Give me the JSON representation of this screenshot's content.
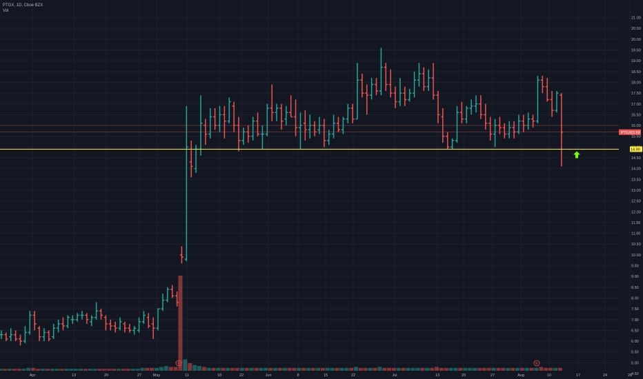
{
  "header": {
    "symbol_line": "PTGX, 1D, Cboe BZX",
    "volume_label": "Vol"
  },
  "price_scale": {
    "ticks": [
      "21.00",
      "20.50",
      "20.00",
      "19.50",
      "19.00",
      "18.50",
      "18.00",
      "17.50",
      "17.00",
      "16.50",
      "16.00",
      "15.50",
      "15.00",
      "14.50",
      "14.00",
      "13.50",
      "13.00",
      "12.50",
      "12.00",
      "11.50",
      "11.00",
      "10.50",
      "10.00",
      "9.50",
      "9.00",
      "8.50",
      "8.00",
      "7.50",
      "7.00",
      "6.50",
      "6.00",
      "5.50",
      "5.00",
      "4.50"
    ]
  },
  "time_axis": {
    "labels": [
      "Apr",
      "13",
      "20",
      "27",
      "May",
      "11",
      "18",
      "22",
      "Jun",
      "8",
      "15",
      "22",
      "Jul",
      "13",
      "20",
      "27",
      "Aug",
      "10",
      "17",
      "24",
      "28"
    ]
  },
  "lines": {
    "support": {
      "value": "14.90",
      "color": "#ffeb3b"
    },
    "last_price": {
      "symbol": "PTGX",
      "value": "15.69",
      "color": "#ef5350"
    }
  },
  "colors": {
    "up": "#26a69a",
    "down": "#ef5350",
    "background": "#131722",
    "grid": "#1e222d",
    "arrow": "#76ff03"
  },
  "event_markers": [
    "E",
    "E"
  ],
  "chart_data": {
    "type": "ohlc",
    "title": "PTGX, 1D, Cboe BZX",
    "ylim": [
      4.5,
      21.0
    ],
    "support_level": 14.9,
    "last_price": 15.69,
    "bars": [
      [
        6.3,
        6.5,
        6.1,
        6.3
      ],
      [
        6.3,
        6.4,
        6.0,
        6.1
      ],
      [
        6.2,
        6.6,
        6.0,
        6.3
      ],
      [
        6.3,
        6.5,
        6.0,
        6.1
      ],
      [
        6.1,
        6.3,
        5.8,
        6.0
      ],
      [
        6.0,
        6.7,
        5.9,
        6.4
      ],
      [
        6.4,
        7.4,
        6.3,
        7.2
      ],
      [
        7.2,
        7.4,
        6.5,
        6.8
      ],
      [
        6.6,
        6.7,
        6.0,
        6.2
      ],
      [
        6.2,
        6.6,
        6.0,
        6.4
      ],
      [
        6.4,
        6.5,
        6.0,
        6.1
      ],
      [
        6.2,
        6.8,
        6.1,
        6.6
      ],
      [
        6.6,
        7.0,
        6.4,
        6.8
      ],
      [
        6.8,
        7.1,
        6.5,
        6.7
      ],
      [
        6.7,
        7.2,
        6.6,
        7.1
      ],
      [
        7.0,
        7.2,
        6.8,
        7.0
      ],
      [
        7.0,
        7.3,
        6.9,
        7.2
      ],
      [
        7.2,
        7.4,
        7.0,
        7.2
      ],
      [
        7.2,
        7.3,
        6.8,
        7.0
      ],
      [
        6.9,
        7.2,
        6.7,
        7.1
      ],
      [
        7.1,
        7.8,
        7.0,
        7.4
      ],
      [
        7.4,
        7.5,
        7.0,
        7.2
      ],
      [
        7.1,
        7.2,
        6.5,
        6.8
      ],
      [
        6.8,
        7.0,
        6.5,
        6.7
      ],
      [
        6.7,
        6.9,
        6.4,
        6.6
      ],
      [
        6.6,
        7.1,
        6.5,
        6.9
      ],
      [
        6.8,
        6.9,
        6.4,
        6.6
      ],
      [
        6.6,
        6.8,
        6.4,
        6.5
      ],
      [
        6.5,
        6.7,
        6.3,
        6.6
      ],
      [
        6.5,
        7.1,
        6.4,
        6.9
      ],
      [
        6.9,
        7.4,
        6.8,
        7.2
      ],
      [
        7.1,
        7.3,
        6.6,
        6.7
      ],
      [
        6.8,
        7.1,
        6.1,
        6.6
      ],
      [
        6.6,
        7.5,
        6.5,
        7.5
      ],
      [
        7.5,
        8.2,
        7.4,
        7.9
      ],
      [
        7.9,
        8.5,
        7.8,
        8.4
      ],
      [
        8.4,
        8.6,
        8.0,
        8.1
      ],
      [
        8.1,
        8.3,
        7.6,
        7.8
      ],
      [
        10.0,
        10.4,
        9.6,
        9.9
      ],
      [
        9.8,
        16.9,
        9.7,
        15.0
      ],
      [
        14.3,
        15.3,
        13.6,
        14.1
      ],
      [
        14.0,
        15.1,
        13.8,
        14.9
      ],
      [
        14.9,
        17.4,
        14.6,
        16.1
      ],
      [
        16.0,
        16.3,
        15.1,
        15.6
      ],
      [
        15.6,
        16.8,
        15.4,
        16.4
      ],
      [
        16.4,
        16.8,
        15.8,
        16.0
      ],
      [
        16.0,
        16.9,
        15.7,
        16.5
      ],
      [
        16.5,
        16.9,
        15.4,
        16.2
      ],
      [
        16.2,
        17.3,
        16.1,
        17.1
      ],
      [
        16.9,
        17.1,
        15.7,
        16.0
      ],
      [
        16.0,
        16.4,
        14.8,
        15.3
      ],
      [
        15.3,
        15.9,
        15.1,
        15.7
      ],
      [
        15.7,
        16.0,
        15.2,
        15.5
      ],
      [
        15.5,
        16.4,
        15.3,
        16.2
      ],
      [
        16.2,
        16.6,
        15.5,
        15.6
      ],
      [
        15.6,
        16.0,
        14.9,
        15.6
      ],
      [
        15.6,
        17.0,
        15.5,
        16.8
      ],
      [
        16.8,
        17.9,
        16.2,
        16.6
      ],
      [
        16.6,
        17.0,
        16.2,
        16.8
      ],
      [
        16.8,
        17.0,
        15.8,
        16.2
      ],
      [
        16.3,
        16.9,
        16.0,
        16.6
      ],
      [
        16.6,
        17.4,
        16.4,
        16.4
      ],
      [
        16.4,
        17.2,
        15.5,
        15.9
      ],
      [
        15.9,
        16.6,
        14.9,
        16.0
      ],
      [
        16.1,
        16.7,
        15.3,
        15.8
      ],
      [
        15.8,
        16.5,
        15.4,
        16.0
      ],
      [
        16.0,
        16.2,
        15.5,
        15.7
      ],
      [
        15.8,
        16.4,
        15.6,
        16.0
      ],
      [
        16.0,
        16.3,
        15.0,
        15.3
      ],
      [
        15.3,
        15.8,
        15.1,
        15.6
      ],
      [
        15.6,
        16.5,
        15.4,
        16.1
      ],
      [
        16.1,
        16.4,
        15.7,
        15.8
      ],
      [
        15.8,
        16.4,
        15.6,
        16.3
      ],
      [
        16.3,
        17.0,
        16.1,
        16.8
      ],
      [
        16.8,
        17.0,
        16.1,
        16.3
      ],
      [
        16.3,
        18.9,
        16.3,
        18.1
      ],
      [
        18.1,
        18.4,
        17.3,
        17.5
      ],
      [
        17.5,
        17.9,
        16.5,
        17.4
      ],
      [
        17.4,
        18.2,
        17.2,
        17.9
      ],
      [
        17.9,
        18.2,
        17.4,
        17.6
      ],
      [
        17.6,
        19.6,
        17.4,
        18.7
      ],
      [
        18.7,
        18.9,
        17.6,
        17.9
      ],
      [
        17.9,
        18.6,
        17.3,
        17.5
      ],
      [
        17.5,
        17.8,
        16.8,
        17.1
      ],
      [
        17.1,
        18.2,
        16.9,
        17.5
      ],
      [
        17.5,
        17.8,
        16.9,
        17.2
      ],
      [
        17.2,
        17.7,
        17.1,
        17.5
      ],
      [
        17.5,
        18.5,
        17.3,
        18.1
      ],
      [
        18.1,
        18.9,
        17.8,
        18.4
      ],
      [
        18.4,
        18.7,
        17.6,
        17.8
      ],
      [
        17.8,
        18.6,
        17.6,
        18.2
      ],
      [
        18.2,
        18.9,
        17.2,
        17.4
      ],
      [
        17.4,
        17.6,
        16.1,
        16.5
      ],
      [
        16.4,
        16.8,
        15.2,
        15.5
      ],
      [
        15.5,
        15.7,
        14.9,
        15.0
      ],
      [
        15.0,
        15.4,
        14.9,
        15.3
      ],
      [
        15.3,
        16.9,
        15.2,
        16.6
      ],
      [
        16.6,
        17.1,
        16.1,
        16.3
      ],
      [
        16.3,
        16.9,
        16.1,
        16.8
      ],
      [
        16.8,
        17.2,
        16.5,
        16.9
      ],
      [
        16.9,
        17.4,
        16.6,
        17.0
      ],
      [
        17.0,
        17.4,
        16.3,
        16.5
      ],
      [
        16.5,
        17.0,
        15.8,
        16.1
      ],
      [
        16.1,
        16.4,
        15.3,
        15.6
      ],
      [
        15.6,
        16.3,
        15.0,
        16.0
      ],
      [
        16.0,
        16.4,
        15.6,
        15.9
      ],
      [
        15.9,
        16.1,
        15.4,
        15.6
      ],
      [
        15.6,
        16.2,
        15.4,
        15.9
      ],
      [
        15.9,
        16.2,
        15.4,
        15.7
      ],
      [
        15.7,
        16.5,
        15.6,
        16.2
      ],
      [
        16.2,
        16.5,
        15.7,
        16.0
      ],
      [
        16.0,
        16.6,
        15.8,
        16.3
      ],
      [
        16.3,
        16.5,
        15.9,
        16.2
      ],
      [
        16.2,
        18.3,
        16.1,
        18.1
      ],
      [
        18.1,
        18.3,
        17.5,
        17.8
      ],
      [
        17.8,
        18.2,
        17.1,
        17.2
      ],
      [
        17.2,
        17.6,
        16.4,
        16.7
      ],
      [
        16.7,
        17.6,
        16.6,
        17.5
      ],
      [
        17.4,
        17.5,
        14.1,
        15.69
      ]
    ],
    "volume": [
      0.02,
      0.02,
      0.02,
      0.02,
      0.02,
      0.02,
      0.03,
      0.03,
      0.02,
      0.02,
      0.02,
      0.02,
      0.02,
      0.02,
      0.02,
      0.02,
      0.02,
      0.02,
      0.02,
      0.02,
      0.02,
      0.02,
      0.02,
      0.02,
      0.02,
      0.02,
      0.02,
      0.02,
      0.02,
      0.02,
      0.03,
      0.03,
      0.03,
      0.03,
      0.04,
      0.05,
      0.04,
      0.04,
      1.0,
      0.12,
      0.08,
      0.06,
      0.05,
      0.04,
      0.03,
      0.03,
      0.03,
      0.03,
      0.03,
      0.03,
      0.03,
      0.03,
      0.03,
      0.03,
      0.03,
      0.03,
      0.03,
      0.03,
      0.03,
      0.03,
      0.03,
      0.03,
      0.03,
      0.03,
      0.03,
      0.03,
      0.03,
      0.03,
      0.03,
      0.03,
      0.03,
      0.03,
      0.03,
      0.03,
      0.03,
      0.04,
      0.03,
      0.03,
      0.03,
      0.03,
      0.04,
      0.03,
      0.03,
      0.03,
      0.03,
      0.03,
      0.03,
      0.03,
      0.03,
      0.03,
      0.03,
      0.03,
      0.04,
      0.03,
      0.03,
      0.03,
      0.03,
      0.03,
      0.03,
      0.03,
      0.03,
      0.03,
      0.03,
      0.03,
      0.03,
      0.03,
      0.03,
      0.03,
      0.03,
      0.03,
      0.03,
      0.03,
      0.03,
      0.03,
      0.04,
      0.03,
      0.03,
      0.03,
      0.03,
      0.04
    ]
  }
}
